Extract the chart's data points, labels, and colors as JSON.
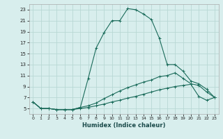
{
  "xlabel": "Humidex (Indice chaleur)",
  "bg_color": "#d8eeed",
  "grid_color": "#b8d8d4",
  "line_color": "#1a6b5a",
  "xlim": [
    -0.5,
    23.5
  ],
  "ylim": [
    4,
    24
  ],
  "yticks": [
    5,
    7,
    9,
    11,
    13,
    15,
    17,
    19,
    21,
    23
  ],
  "xticks": [
    0,
    1,
    2,
    3,
    4,
    5,
    6,
    7,
    8,
    9,
    10,
    11,
    12,
    13,
    14,
    15,
    16,
    17,
    18,
    19,
    20,
    21,
    22,
    23
  ],
  "line1_x": [
    0,
    1,
    2,
    3,
    4,
    5,
    6,
    7,
    8,
    9,
    10,
    11,
    12,
    13,
    14,
    15,
    16,
    17,
    18,
    19,
    20,
    21,
    22,
    23
  ],
  "line1_y": [
    6.2,
    5.0,
    5.0,
    4.8,
    4.8,
    4.8,
    5.2,
    10.5,
    16.0,
    18.8,
    21.0,
    21.0,
    23.2,
    23.0,
    22.2,
    21.2,
    17.8,
    13.0,
    13.0,
    11.8,
    10.0,
    9.5,
    8.5,
    7.0
  ],
  "line2_x": [
    0,
    1,
    2,
    3,
    4,
    5,
    6,
    7,
    8,
    9,
    10,
    11,
    12,
    13,
    14,
    15,
    16,
    17,
    18,
    19,
    20,
    21,
    22,
    23
  ],
  "line2_y": [
    6.2,
    5.0,
    5.0,
    4.8,
    4.8,
    4.8,
    5.2,
    5.5,
    6.0,
    6.8,
    7.5,
    8.2,
    8.8,
    9.3,
    9.8,
    10.2,
    10.8,
    11.0,
    11.5,
    10.5,
    9.5,
    9.2,
    8.0,
    7.0
  ],
  "line3_x": [
    0,
    1,
    2,
    3,
    4,
    5,
    6,
    7,
    8,
    9,
    10,
    11,
    12,
    13,
    14,
    15,
    16,
    17,
    18,
    19,
    20,
    21,
    22,
    23
  ],
  "line3_y": [
    6.2,
    5.0,
    5.0,
    4.8,
    4.8,
    4.8,
    5.0,
    5.2,
    5.5,
    5.8,
    6.2,
    6.5,
    6.9,
    7.2,
    7.6,
    8.0,
    8.4,
    8.7,
    9.0,
    9.2,
    9.4,
    7.2,
    6.5,
    7.0
  ]
}
